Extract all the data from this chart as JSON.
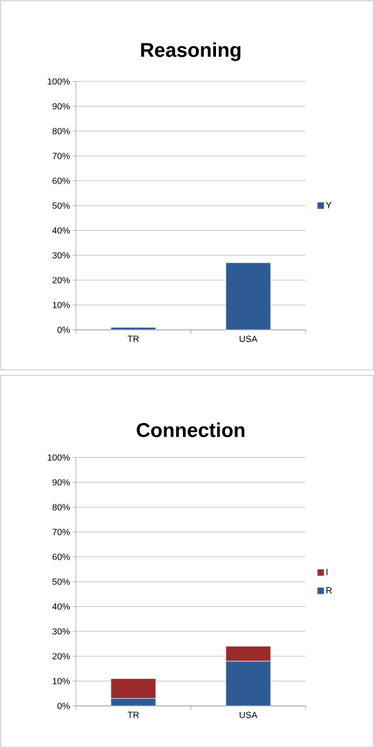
{
  "chart_data": [
    {
      "type": "bar",
      "title": "Reasoning",
      "categories": [
        "TR",
        "USA"
      ],
      "series": [
        {
          "name": "Y",
          "color": "#2e5b94",
          "values": [
            1,
            27
          ]
        }
      ],
      "ylim": [
        0,
        100
      ],
      "yticks": [
        {
          "value": 0,
          "label": "0%"
        },
        {
          "value": 10,
          "label": "10%"
        },
        {
          "value": 20,
          "label": "20%"
        },
        {
          "value": 30,
          "label": "30%"
        },
        {
          "value": 40,
          "label": "40%"
        },
        {
          "value": 50,
          "label": "50%"
        },
        {
          "value": 60,
          "label": "60%"
        },
        {
          "value": 70,
          "label": "70%"
        },
        {
          "value": 80,
          "label": "80%"
        },
        {
          "value": 90,
          "label": "90%"
        },
        {
          "value": 100,
          "label": "100%"
        }
      ],
      "grid": "y",
      "legend": "right"
    },
    {
      "type": "bar",
      "title": "Connection",
      "categories": [
        "TR",
        "USA"
      ],
      "stacked": true,
      "series": [
        {
          "name": "R",
          "color": "#2e5b94",
          "values": [
            3,
            18
          ]
        },
        {
          "name": "I",
          "color": "#9a2b2b",
          "values": [
            8,
            6
          ]
        }
      ],
      "ylim": [
        0,
        100
      ],
      "yticks": [
        {
          "value": 0,
          "label": "0%"
        },
        {
          "value": 10,
          "label": "10%"
        },
        {
          "value": 20,
          "label": "20%"
        },
        {
          "value": 30,
          "label": "30%"
        },
        {
          "value": 40,
          "label": "40%"
        },
        {
          "value": 50,
          "label": "50%"
        },
        {
          "value": 60,
          "label": "60%"
        },
        {
          "value": 70,
          "label": "70%"
        },
        {
          "value": 80,
          "label": "80%"
        },
        {
          "value": 90,
          "label": "90%"
        },
        {
          "value": 100,
          "label": "100%"
        }
      ],
      "grid": "y",
      "legend": "right"
    }
  ]
}
